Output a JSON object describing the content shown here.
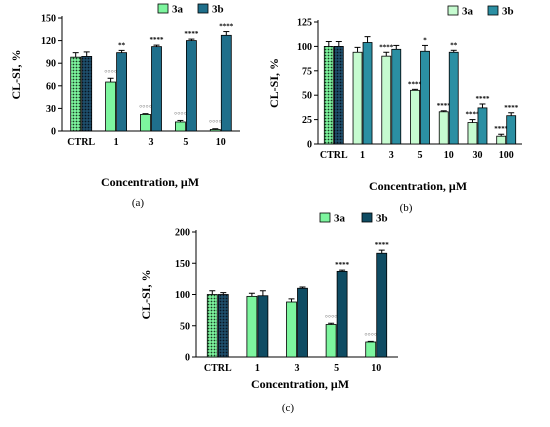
{
  "chart_data": [
    {
      "type": "bar",
      "panel_label": "(a)",
      "xlabel": "Concentration, μM",
      "ylabel": "CL-SI, %",
      "ylim": [
        0,
        150
      ],
      "yticks": [
        0,
        30,
        60,
        90,
        120,
        150
      ],
      "categories": [
        "CTRL",
        "1",
        "3",
        "5",
        "10"
      ],
      "legend": "top",
      "series": [
        {
          "name": "3a",
          "color": "#7df59e",
          "values": [
            98,
            65,
            22,
            12,
            2
          ],
          "errors": [
            6,
            5,
            1,
            2,
            1
          ],
          "annotations": [
            "",
            "°°°°",
            "°°°°",
            "°°°°",
            "°°°°"
          ]
        },
        {
          "name": "3b",
          "color": "#1f6f8b",
          "values": [
            99,
            104,
            112,
            120,
            127
          ],
          "errors": [
            6,
            3,
            2,
            2,
            5
          ],
          "annotations": [
            "",
            "**",
            "****",
            "****",
            "****"
          ]
        }
      ]
    },
    {
      "type": "bar",
      "panel_label": "(b)",
      "xlabel": "Concentration, μM",
      "ylabel": "CL-SI, %",
      "ylim": [
        0,
        125
      ],
      "yticks": [
        0,
        25,
        50,
        75,
        100,
        125
      ],
      "categories": [
        "CTRL",
        "1",
        "3",
        "5",
        "10",
        "30",
        "100"
      ],
      "legend": "top-right",
      "series": [
        {
          "name": "3a",
          "color": "#c6fbd0",
          "values": [
            100,
            94,
            90,
            55,
            33,
            22,
            8
          ],
          "errors": [
            5,
            5,
            4,
            1,
            1,
            3,
            2
          ],
          "annotations": [
            "",
            "",
            "****",
            "****",
            "****",
            "****",
            "****"
          ]
        },
        {
          "name": "3b",
          "color": "#2b8fa3",
          "values": [
            100,
            104,
            97,
            95,
            94,
            37,
            29
          ],
          "errors": [
            5,
            6,
            4,
            6,
            2,
            4,
            3
          ],
          "annotations": [
            "",
            "",
            "",
            "*",
            "**",
            "****",
            "****"
          ]
        }
      ]
    },
    {
      "type": "bar",
      "panel_label": "(c)",
      "xlabel": "Concentration, μM",
      "ylabel": "CL-SI, %",
      "ylim": [
        0,
        200
      ],
      "yticks": [
        0,
        50,
        100,
        150,
        200
      ],
      "categories": [
        "CTRL",
        "1",
        "3",
        "5",
        "10"
      ],
      "legend": "top",
      "series": [
        {
          "name": "3a",
          "color": "#7df59e",
          "values": [
            100,
            97,
            88,
            52,
            24
          ],
          "errors": [
            6,
            5,
            5,
            2,
            1
          ],
          "annotations": [
            "",
            "",
            "",
            "°°°°",
            "°°°°"
          ]
        },
        {
          "name": "3b",
          "color": "#0f4c63",
          "values": [
            100,
            98,
            110,
            137,
            166
          ],
          "errors": [
            3,
            8,
            2,
            2,
            5
          ],
          "annotations": [
            "",
            "",
            "",
            "****",
            "****"
          ]
        }
      ]
    }
  ]
}
